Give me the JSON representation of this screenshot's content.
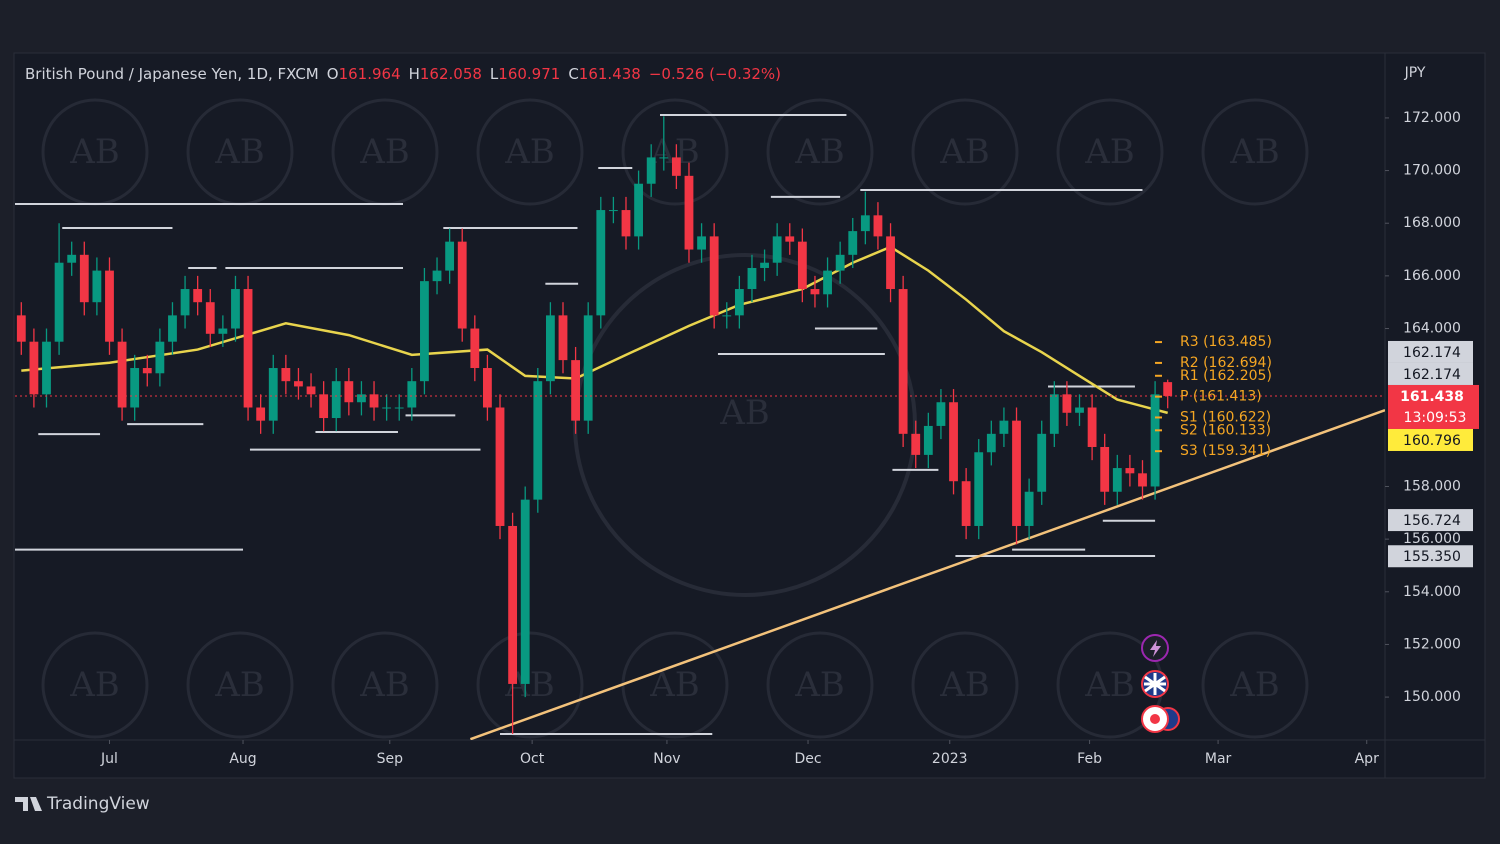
{
  "chart_data": {
    "type": "candlestick",
    "header": {
      "symbol": "British Pound / Japanese Yen, 1D, FXCM",
      "o": "O",
      "h": "H",
      "l": "L",
      "c": "C",
      "change": "−0.526 (−0.32%)"
    },
    "currency": "JPY",
    "countdown": "13:09:53",
    "brand": "TradingView",
    "watermark": "AB",
    "up_color": "#089981",
    "down_color": "#f23645",
    "xlim": [
      -1,
      216.5
    ],
    "ylim": [
      148.37,
      174.39
    ],
    "grid": false,
    "xticks": [
      {
        "value": 14,
        "label": "Jul"
      },
      {
        "value": 35.2,
        "label": "Aug"
      },
      {
        "value": 58.5,
        "label": "Sep"
      },
      {
        "value": 81.1,
        "label": "Oct"
      },
      {
        "value": 102.5,
        "label": "Nov"
      },
      {
        "value": 124.9,
        "label": "Dec"
      },
      {
        "value": 147.4,
        "label": "2023"
      },
      {
        "value": 169.6,
        "label": "Feb"
      },
      {
        "value": 190,
        "label": "Mar"
      },
      {
        "value": 213.6,
        "label": "Apr"
      }
    ],
    "yticks": [
      {
        "value": 150,
        "label": "150.000"
      },
      {
        "value": 152,
        "label": "152.000"
      },
      {
        "value": 154,
        "label": "154.000"
      },
      {
        "value": 156,
        "label": "156.000"
      },
      {
        "value": 158,
        "label": "158.000"
      },
      {
        "value": 164,
        "label": "164.000"
      },
      {
        "value": 166,
        "label": "166.000"
      },
      {
        "value": 168,
        "label": "168.000"
      },
      {
        "value": 170,
        "label": "170.000"
      },
      {
        "value": 172,
        "label": "172.000"
      }
    ],
    "x": [
      0,
      2,
      4,
      6,
      8,
      10,
      12,
      14,
      16,
      18,
      20,
      22,
      24,
      26,
      28,
      30,
      32,
      34,
      36,
      38,
      40,
      42,
      44,
      46,
      48,
      50,
      52,
      54,
      56,
      58,
      60,
      62,
      64,
      66,
      68,
      70,
      72,
      74,
      76,
      78,
      80,
      82,
      84,
      86,
      88,
      90,
      92,
      94,
      96,
      98,
      100,
      102,
      104,
      106,
      108,
      110,
      112,
      114,
      116,
      118,
      120,
      122,
      124,
      126,
      128,
      130,
      132,
      134,
      136,
      138,
      140,
      142,
      144,
      146,
      148,
      150,
      152,
      154,
      156,
      158,
      160,
      162,
      164,
      166,
      168,
      170,
      172,
      174,
      176,
      178,
      180,
      182
    ],
    "open": [
      164.5,
      163.5,
      161.5,
      163.5,
      166.5,
      166.8,
      165,
      166.2,
      163.5,
      161,
      162.5,
      162.3,
      163.5,
      164.5,
      165.5,
      165,
      163.8,
      164,
      165.5,
      161,
      160.5,
      162.5,
      162,
      161.8,
      161.5,
      160.6,
      162,
      161.2,
      161.5,
      161,
      161,
      161,
      162,
      165.8,
      166.2,
      167.3,
      164,
      162.5,
      161,
      156.5,
      150.5,
      157.5,
      162,
      164.5,
      162.8,
      160.5,
      164.5,
      168.5,
      168.5,
      167.5,
      169.5,
      170.5,
      170.5,
      169.8,
      167,
      167.5,
      164.5,
      164.5,
      165.5,
      166.3,
      166.5,
      167.5,
      167.3,
      165.5,
      165.3,
      166.2,
      166.8,
      167.7,
      168.3,
      167.5,
      165.5,
      160,
      159.2,
      160.3,
      161.2,
      158.2,
      156.5,
      159.3,
      160,
      160.5,
      156.5,
      157.8,
      160,
      161.5,
      160.8,
      161,
      159.5,
      157.8,
      158.7,
      158.5,
      158,
      161.964
    ],
    "high": [
      165,
      164,
      164,
      168,
      167.3,
      167.3,
      166.7,
      166.7,
      164,
      163,
      163,
      164,
      165,
      166,
      166,
      165.5,
      164.5,
      166,
      166,
      161.5,
      163,
      163,
      162.5,
      162.3,
      162,
      162.5,
      162.5,
      162,
      162,
      161.5,
      161.5,
      162.5,
      166.3,
      166.7,
      167.8,
      167.8,
      164.5,
      163,
      161.5,
      157,
      158,
      162.5,
      165,
      165,
      163.3,
      165,
      169,
      169,
      169,
      170,
      171,
      172.06,
      171,
      170.3,
      168,
      168,
      165,
      166,
      166.8,
      167,
      168,
      168,
      167.8,
      166,
      166.7,
      167.3,
      168.2,
      169.2,
      168.8,
      168,
      166,
      160.5,
      160.8,
      161.7,
      161.7,
      158.7,
      159.8,
      160.5,
      161,
      161,
      158.3,
      160.5,
      162,
      162,
      161.5,
      161.5,
      160,
      159.2,
      159.2,
      159,
      162,
      162.058
    ],
    "low": [
      163,
      161,
      161,
      163,
      166,
      164.5,
      164.5,
      163,
      160.5,
      160.5,
      161.8,
      161.8,
      163,
      164,
      164.5,
      163.3,
      163.3,
      163.5,
      160.5,
      160,
      160,
      161.5,
      161.3,
      161,
      160.1,
      160.1,
      160.7,
      160.7,
      160.5,
      160.5,
      160.5,
      160.5,
      161.5,
      165.3,
      165.7,
      163.5,
      162,
      160.5,
      156,
      148.6,
      150,
      157,
      161.5,
      162.3,
      160,
      160,
      164,
      168,
      167,
      167,
      169,
      170,
      169.3,
      166.5,
      166.5,
      164,
      164,
      164,
      165,
      165.8,
      166,
      166.8,
      165,
      164.8,
      164.8,
      165.7,
      166.3,
      167.2,
      167,
      165,
      159.5,
      158.7,
      158.7,
      159.8,
      157.7,
      156,
      156,
      158.8,
      159.5,
      155.8,
      156,
      157.3,
      159.5,
      160.3,
      160.3,
      159,
      157.3,
      157.3,
      158,
      157.5,
      157.5,
      160.971
    ],
    "close": [
      163.5,
      161.5,
      163.5,
      166.5,
      166.8,
      165,
      166.2,
      163.5,
      161,
      162.5,
      162.3,
      163.5,
      164.5,
      165.5,
      165,
      163.8,
      164,
      165.5,
      161,
      160.5,
      162.5,
      162,
      161.8,
      161.5,
      160.6,
      162,
      161.2,
      161.5,
      161,
      161,
      161,
      162,
      165.8,
      166.2,
      167.3,
      164,
      162.5,
      161,
      156.5,
      150.5,
      157.5,
      162,
      164.5,
      162.8,
      160.5,
      164.5,
      168.5,
      168.5,
      167.5,
      169.5,
      170.5,
      170.5,
      169.8,
      167,
      167.5,
      164.5,
      164.5,
      165.5,
      166.3,
      166.5,
      167.5,
      167.3,
      165.5,
      165.3,
      166.2,
      166.8,
      167.7,
      168.3,
      167.5,
      165.5,
      160,
      159.2,
      160.3,
      161.2,
      158.2,
      156.5,
      159.3,
      160,
      160.5,
      156.5,
      157.8,
      160,
      161.5,
      160.8,
      161,
      159.5,
      157.8,
      158.7,
      158.5,
      158,
      161.5,
      161.438
    ],
    "ma": {
      "color": "#e8d44d",
      "x": [
        0,
        14,
        28,
        42,
        52,
        62,
        74,
        80,
        88,
        96,
        106,
        114,
        124,
        132,
        138,
        144,
        150,
        156,
        162,
        168,
        174,
        182
      ],
      "values": [
        162.4,
        162.7,
        163.2,
        164.2,
        163.75,
        163,
        163.2,
        162.2,
        162.1,
        163,
        164.1,
        164.9,
        165.5,
        166.5,
        167.1,
        166.2,
        165.1,
        163.9,
        163.1,
        162.2,
        161.3,
        160.796
      ]
    },
    "trendline": {
      "color": "#f3c27b",
      "x": [
        71.3,
        216.5
      ],
      "values": [
        148.4,
        160.9
      ]
    },
    "levels_color": "#d1d4dc",
    "levels": [
      {
        "x": [
          -1,
          60.6
        ],
        "value": 168.73
      },
      {
        "x": [
          6.5,
          24
        ],
        "value": 167.82
      },
      {
        "x": [
          26.5,
          31
        ],
        "value": 166.3
      },
      {
        "x": [
          32.4,
          60.6
        ],
        "value": 166.3
      },
      {
        "x": [
          67,
          88.3
        ],
        "value": 167.82
      },
      {
        "x": [
          101.4,
          131
        ],
        "value": 172.11
      },
      {
        "x": [
          133.2,
          178
        ],
        "value": 169.26
      },
      {
        "x": [
          119,
          130
        ],
        "value": 169
      },
      {
        "x": [
          91.6,
          97
        ],
        "value": 170.1
      },
      {
        "x": [
          83.2,
          88.4
        ],
        "value": 165.7
      },
      {
        "x": [
          2.7,
          12.5
        ],
        "value": 159.99
      },
      {
        "x": [
          16.8,
          28.9
        ],
        "value": 160.37
      },
      {
        "x": [
          36.3,
          72.9
        ],
        "value": 159.4
      },
      {
        "x": [
          46.7,
          59.8
        ],
        "value": 160.07
      },
      {
        "x": [
          61,
          68.9
        ],
        "value": 160.7
      },
      {
        "x": [
          -1,
          35.2
        ],
        "value": 155.6
      },
      {
        "x": [
          76,
          109.7
        ],
        "value": 148.6
      },
      {
        "x": [
          110.6,
          137.1
        ],
        "value": 163.03
      },
      {
        "x": [
          126,
          135.9
        ],
        "value": 164.0
      },
      {
        "x": [
          138.3,
          145.6
        ],
        "value": 158.63
      },
      {
        "x": [
          148.3,
          180
        ],
        "value": 155.36
      },
      {
        "x": [
          157.3,
          168.9
        ],
        "value": 155.6
      },
      {
        "x": [
          163,
          176.8
        ],
        "value": 161.8
      },
      {
        "x": [
          171.7,
          180
        ],
        "value": 156.7
      }
    ],
    "pivot_color": "#f5a623",
    "pivots": [
      {
        "value": 163.485,
        "label": "R3 (163.485)"
      },
      {
        "value": 162.694,
        "label": "R2 (162.694)"
      },
      {
        "value": 162.205,
        "label": "R1 (162.205)"
      },
      {
        "value": 161.413,
        "label": "P (161.413)"
      },
      {
        "value": 160.622,
        "label": "S1 (160.622)"
      },
      {
        "value": 160.133,
        "label": "S2 (160.133)"
      },
      {
        "value": 159.341,
        "label": "S3 (159.341)"
      }
    ],
    "badges_above": [
      {
        "value": 162.174,
        "label": "162.174",
        "color": "#d1d4dc"
      },
      {
        "value": 162.174,
        "label": "162.174",
        "color": "#d1d4dc"
      }
    ],
    "badges_below": [
      {
        "value": 160.796,
        "label": "160.796",
        "color": "#ffeb3b"
      },
      {
        "value": 156.724,
        "label": "156.724",
        "color": "#d1d4dc"
      },
      {
        "value": 155.35,
        "label": "155.350",
        "color": "#d1d4dc"
      }
    ]
  }
}
